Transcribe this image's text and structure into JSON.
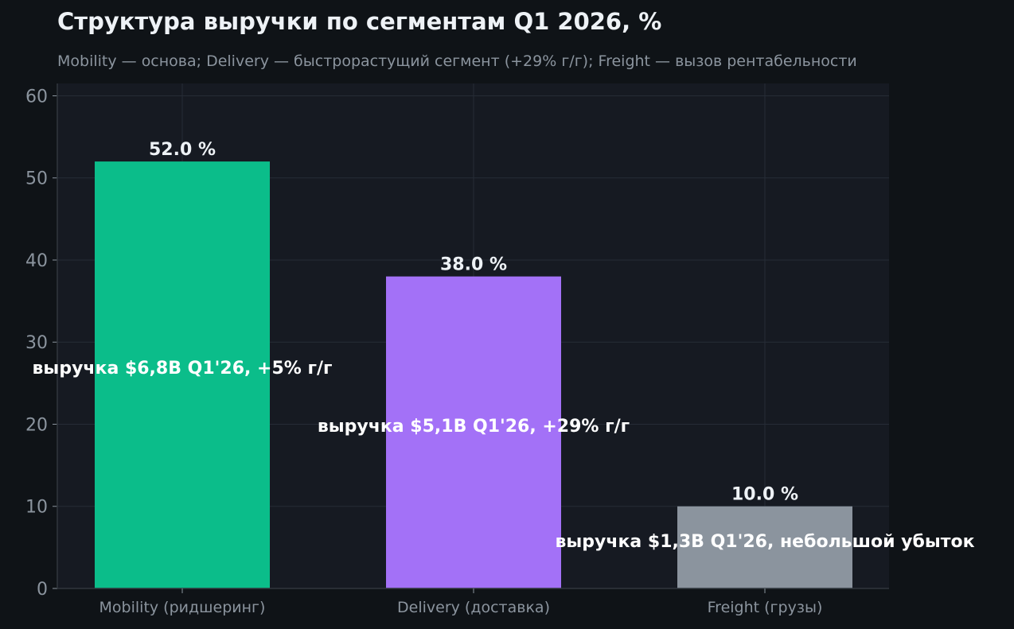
{
  "chart_data": {
    "type": "bar",
    "title": "Структура выручки по сегментам Q1 2026, %",
    "subtitle": "Mobility — основа; Delivery — быстрорастущий сегмент (+29% г/г); Freight — вызов рентабельности",
    "categories": [
      "Mobility (ридшеринг)",
      "Delivery (доставка)",
      "Freight (грузы)"
    ],
    "values": [
      52.0,
      38.0,
      10.0
    ],
    "value_labels": [
      "52.0 %",
      "38.0 %",
      "10.0 %"
    ],
    "annotations": [
      "выручка $6,8B Q1'26, +5% г/г",
      "выручка $5,1B Q1'26, +29% г/г",
      "выручка $1,3B Q1'26, небольшой убыток"
    ],
    "bar_colors": [
      "#0bbd8a",
      "#a371f7",
      "#8b949e"
    ],
    "xlabel": "",
    "ylabel": "",
    "ylim": [
      0,
      61.5
    ],
    "yticks": [
      0,
      10,
      20,
      30,
      40,
      50,
      60
    ],
    "grid": true,
    "background": "#0f1317",
    "plot_background": "#161a22"
  }
}
